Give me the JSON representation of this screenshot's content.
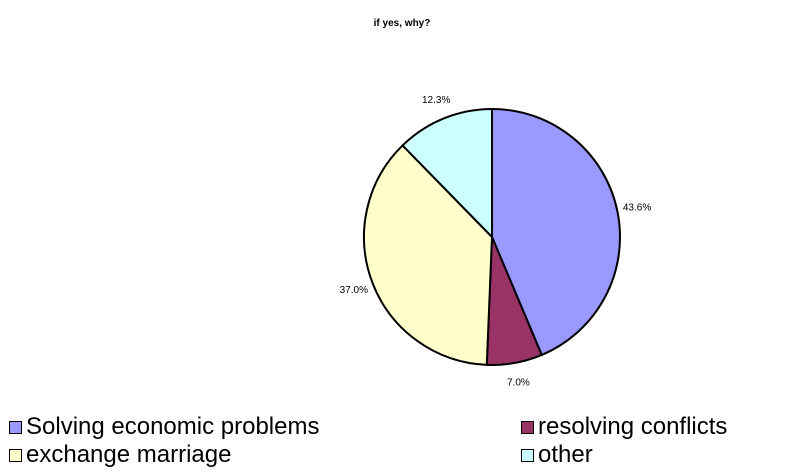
{
  "chart_data": {
    "type": "pie",
    "title": "if yes, why?",
    "slices": [
      {
        "label": "Solving economic problems",
        "value": 43.6,
        "value_label": "43.6%",
        "color": "#9999FF"
      },
      {
        "label": "resolving conflicts",
        "value": 7.0,
        "value_label": "7.0%",
        "color": "#993366"
      },
      {
        "label": "exchange marriage",
        "value": 37.0,
        "value_label": "37.0%",
        "color": "#FFFFCC"
      },
      {
        "label": "other",
        "value": 12.3,
        "value_label": "12.3%",
        "color": "#CCFFFF"
      }
    ],
    "start": "12 o'clock",
    "direction": "clockwise",
    "legend_position": "bottom"
  }
}
